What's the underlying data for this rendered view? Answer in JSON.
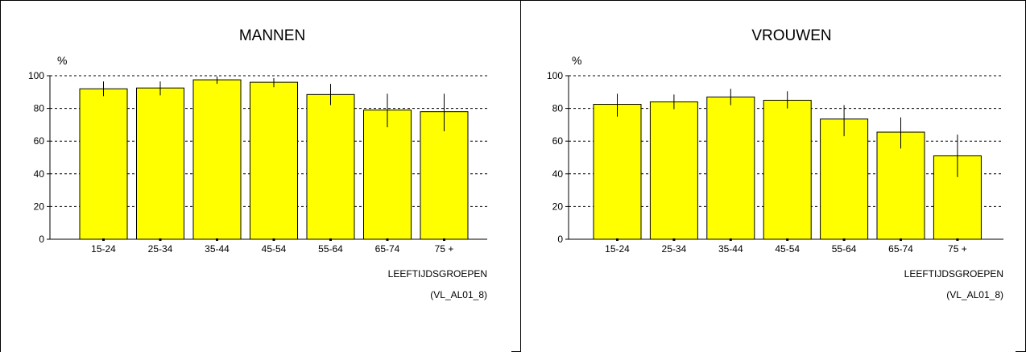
{
  "colors": {
    "bar": "#ffff00",
    "stroke": "#000000",
    "background": "#ffffff"
  },
  "chart_data": [
    {
      "type": "bar",
      "title": "MANNEN",
      "ylabel": "%",
      "xlabel": "LEEFTIJDSGROEPEN",
      "note": "(VL_AL01_8)",
      "categories": [
        "15-24",
        "25-34",
        "35-44",
        "45-54",
        "55-64",
        "65-74",
        "75 +"
      ],
      "values": [
        92,
        92.5,
        97.5,
        96,
        88.5,
        79,
        78
      ],
      "error_low": [
        87.5,
        88,
        95,
        93,
        82,
        68.5,
        66
      ],
      "error_high": [
        96.5,
        96.5,
        99.5,
        98.5,
        95,
        89,
        89
      ],
      "ylim": [
        0,
        100
      ],
      "yticks": [
        0,
        20,
        40,
        60,
        80,
        100
      ],
      "grid": true
    },
    {
      "type": "bar",
      "title": "VROUWEN",
      "ylabel": "%",
      "xlabel": "LEEFTIJDSGROEPEN",
      "note": "(VL_AL01_8)",
      "categories": [
        "15-24",
        "25-34",
        "35-44",
        "45-54",
        "55-64",
        "65-74",
        "75 +"
      ],
      "values": [
        82.5,
        84,
        87,
        85,
        73.5,
        65.5,
        51
      ],
      "error_low": [
        75,
        79.5,
        82,
        80,
        63,
        55.5,
        38
      ],
      "error_high": [
        89,
        88.5,
        92,
        90.5,
        82,
        74.5,
        64
      ],
      "ylim": [
        0,
        100
      ],
      "yticks": [
        0,
        20,
        40,
        60,
        80,
        100
      ],
      "grid": true
    }
  ]
}
